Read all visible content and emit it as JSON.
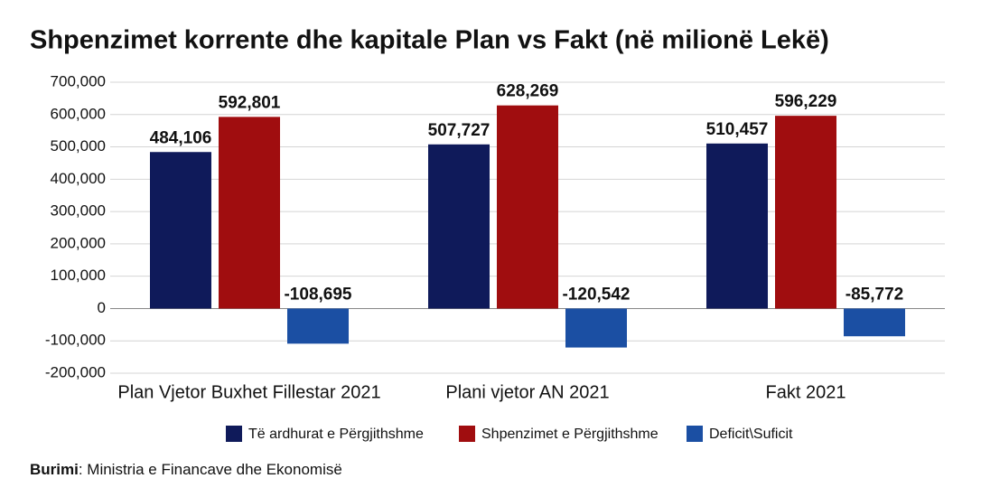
{
  "chart_data": {
    "type": "bar",
    "title": "Shpenzimet korrente dhe kapitale Plan vs Fakt (në milionë Lekë)",
    "categories": [
      "Plan Vjetor Buxhet Fillestar 2021",
      "Plani vjetor AN 2021",
      "Fakt 2021"
    ],
    "series": [
      {
        "name": "Të ardhurat e Përgjithshme",
        "color": "#0f1a5a",
        "values": [
          484106,
          507727,
          510457
        ],
        "value_labels": [
          "484,106",
          "507,727",
          "510,457"
        ]
      },
      {
        "name": "Shpenzimet e Përgjithshme",
        "color": "#a00d0f",
        "values": [
          592801,
          628269,
          596229
        ],
        "value_labels": [
          "592,801",
          "628,269",
          "596,229"
        ]
      },
      {
        "name": "Deficit\\Suficit",
        "color": "#1b4fa3",
        "values": [
          -108695,
          -120542,
          -85772
        ],
        "value_labels": [
          "-108,695",
          "-120,542",
          "-85,772"
        ]
      }
    ],
    "ylim": [
      -200000,
      700000
    ],
    "yticks": [
      {
        "value": -200000,
        "label": "-200,000"
      },
      {
        "value": -100000,
        "label": "-100,000"
      },
      0,
      {
        "value": 100000,
        "label": "100,000"
      },
      {
        "value": 200000,
        "label": "200,000"
      },
      {
        "value": 300000,
        "label": "300,000"
      },
      {
        "value": 400000,
        "label": "400,000"
      },
      {
        "value": 500000,
        "label": "500,000"
      },
      {
        "value": 600000,
        "label": "600,000"
      },
      {
        "value": 700000,
        "label": "700,000"
      }
    ],
    "grid": true,
    "legend": "bottom",
    "source": {
      "label": "Burimi",
      "text": ": Ministria e Financave dhe Ekonomisë"
    }
  }
}
